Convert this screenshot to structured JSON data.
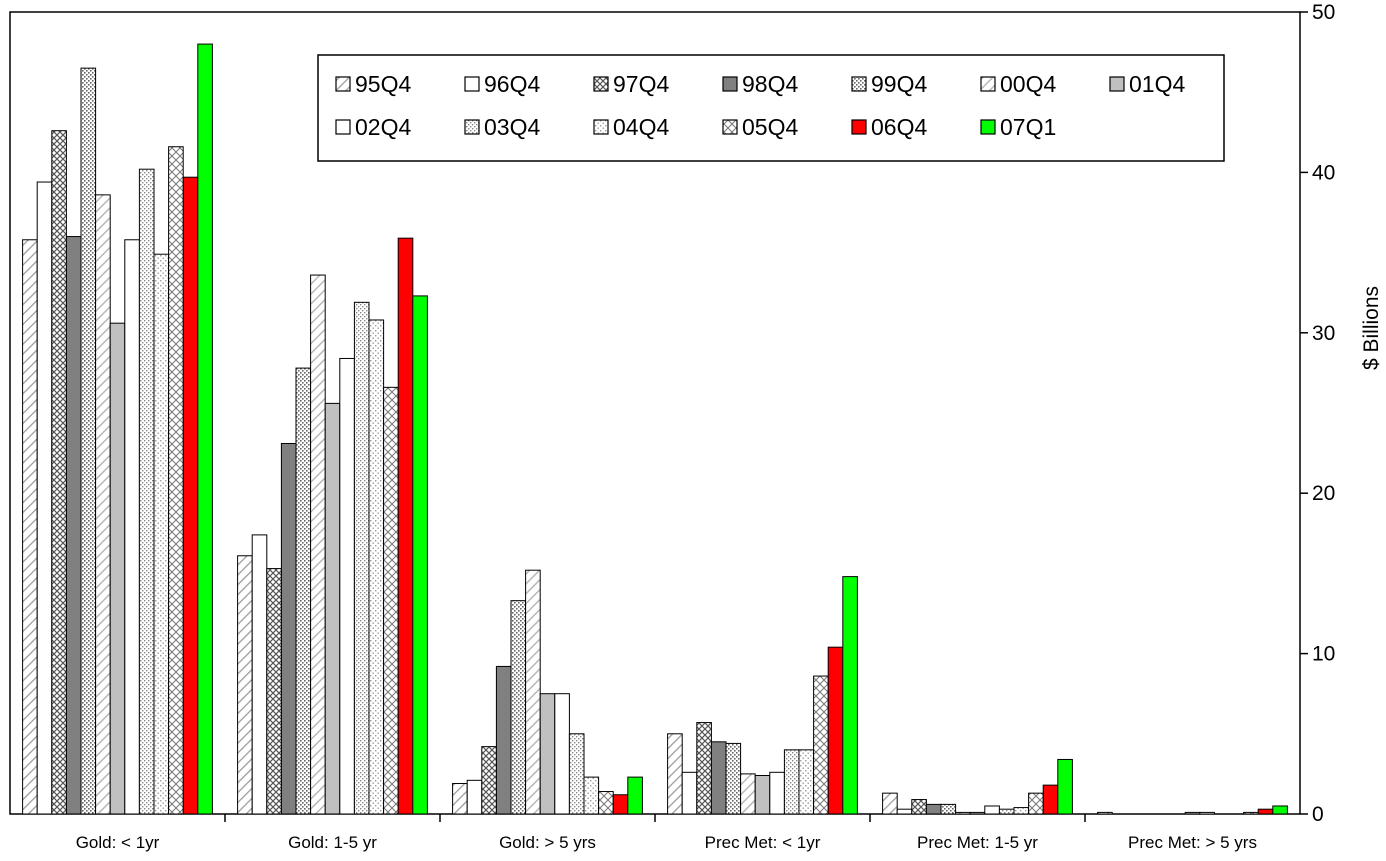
{
  "chart_data": {
    "type": "bar",
    "ylabel": "$ Billions",
    "ylim": [
      0,
      50
    ],
    "y_ticks": [
      "0",
      "10",
      "20",
      "30",
      "40",
      "50"
    ],
    "y_axis_side": "right",
    "grid": false,
    "legend_position": "top-right",
    "categories": [
      "Gold: < 1yr",
      "Gold: 1-5 yr",
      "Gold: > 5 yrs",
      "Prec Met: < 1yr",
      "Prec Met: 1-5 yr",
      "Prec Met: > 5 yrs"
    ],
    "series": [
      {
        "name": "95Q4",
        "pattern": "diag-light",
        "values": [
          35.8,
          16.1,
          1.9,
          5.0,
          1.3,
          0.1
        ]
      },
      {
        "name": "96Q4",
        "pattern": "white",
        "values": [
          39.4,
          17.4,
          2.1,
          2.6,
          0.3,
          0.0
        ]
      },
      {
        "name": "97Q4",
        "pattern": "crosshatch",
        "values": [
          42.6,
          15.3,
          4.2,
          5.7,
          0.9,
          0.0
        ]
      },
      {
        "name": "98Q4",
        "pattern": "dark-gray",
        "values": [
          36.0,
          23.1,
          9.2,
          4.5,
          0.6,
          0.0
        ]
      },
      {
        "name": "99Q4",
        "pattern": "dots",
        "values": [
          46.5,
          27.8,
          13.3,
          4.4,
          0.6,
          0.0
        ]
      },
      {
        "name": "00Q4",
        "pattern": "diag-gray",
        "values": [
          38.6,
          33.6,
          15.2,
          2.5,
          0.1,
          0.0
        ]
      },
      {
        "name": "01Q4",
        "pattern": "light-gray",
        "values": [
          30.6,
          25.6,
          7.5,
          2.4,
          0.1,
          0.1
        ]
      },
      {
        "name": "02Q4",
        "pattern": "white",
        "values": [
          35.8,
          28.4,
          7.5,
          2.6,
          0.5,
          0.1
        ]
      },
      {
        "name": "03Q4",
        "pattern": "dots-dense",
        "values": [
          40.2,
          31.9,
          5.0,
          4.0,
          0.3,
          0.0
        ]
      },
      {
        "name": "04Q4",
        "pattern": "dots-sparse",
        "values": [
          34.9,
          30.8,
          2.3,
          4.0,
          0.4,
          0.0
        ]
      },
      {
        "name": "05Q4",
        "pattern": "crossed",
        "values": [
          41.6,
          26.6,
          1.4,
          8.6,
          1.3,
          0.1
        ]
      },
      {
        "name": "06Q4",
        "pattern": "red",
        "values": [
          39.7,
          35.9,
          1.2,
          10.4,
          1.8,
          0.3
        ]
      },
      {
        "name": "07Q1",
        "pattern": "green",
        "values": [
          48.0,
          32.3,
          2.3,
          14.8,
          3.4,
          0.5
        ]
      }
    ],
    "colors": {
      "06Q4": "#ff0000",
      "07Q1": "#00ff00",
      "98Q4": "#808080",
      "01Q4": "#c0c0c0"
    }
  }
}
